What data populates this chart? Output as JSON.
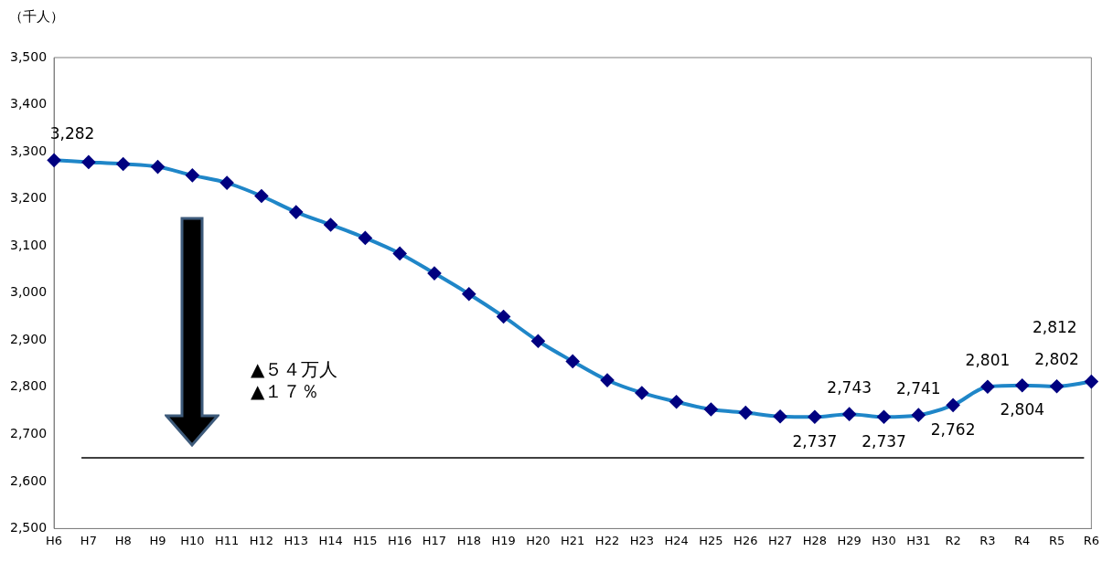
{
  "chart_data": {
    "type": "line",
    "ylabel": "（千人）",
    "categories": [
      "H6",
      "H7",
      "H8",
      "H9",
      "H10",
      "H11",
      "H12",
      "H13",
      "H14",
      "H15",
      "H16",
      "H17",
      "H18",
      "H19",
      "H20",
      "H21",
      "H22",
      "H23",
      "H24",
      "H25",
      "H26",
      "H27",
      "H28",
      "H29",
      "H30",
      "H31",
      "R2",
      "R3",
      "R4",
      "R5",
      "R6"
    ],
    "series": [
      {
        "color": "#1f86c8",
        "values": [
          3282,
          3278,
          3274,
          3268,
          3250,
          3234,
          3206,
          3172,
          3145,
          3117,
          3084,
          3042,
          2998,
          2950,
          2898,
          2855,
          2815,
          2788,
          2769,
          2753,
          2746,
          2738,
          2737,
          2743,
          2737,
          2741,
          2762,
          2801,
          2804,
          2802,
          2812
        ],
        "value_labels": [
          "3,282",
          null,
          null,
          null,
          null,
          null,
          null,
          null,
          null,
          null,
          null,
          null,
          null,
          null,
          null,
          null,
          null,
          null,
          null,
          null,
          null,
          null,
          "2,737",
          "2,743",
          "2,737",
          "2,741",
          "2,762",
          "2,801",
          "2,804",
          "2,802",
          "2,812"
        ]
      }
    ],
    "ylim": [
      2500,
      3500
    ],
    "yticks": [
      {
        "value": 2500,
        "label": "2,500"
      },
      {
        "value": 2600,
        "label": "2,600"
      },
      {
        "value": 2700,
        "label": "2,700"
      },
      {
        "value": 2800,
        "label": "2,800"
      },
      {
        "value": 2900,
        "label": "2,900"
      },
      {
        "value": 3000,
        "label": "3,000"
      },
      {
        "value": 3100,
        "label": "3,100"
      },
      {
        "value": 3200,
        "label": "3,200"
      },
      {
        "value": 3300,
        "label": "3,300"
      },
      {
        "value": 3400,
        "label": "3,400"
      },
      {
        "value": 3500,
        "label": "3,500"
      }
    ],
    "ref_lines": [
      {
        "axis": "y",
        "value": 2650,
        "color": "#000000"
      }
    ],
    "annotations": [
      "▲５４万人",
      "▲１７％"
    ],
    "marker": "diamond",
    "line_style": "solid",
    "grid": false,
    "legend": false
  }
}
